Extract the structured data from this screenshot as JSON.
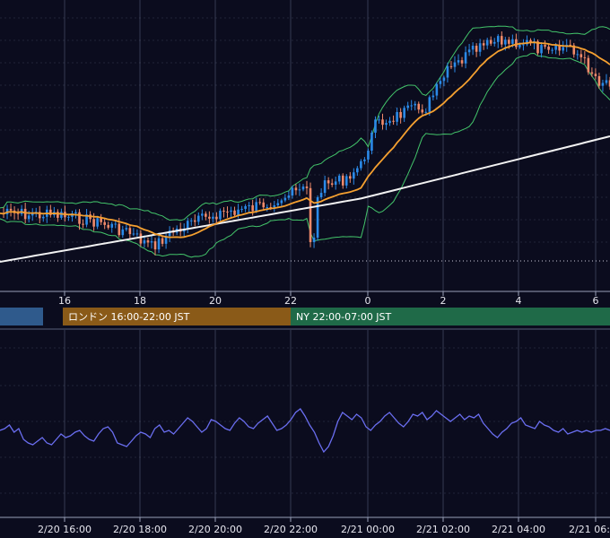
{
  "colors": {
    "background": "#0b0c1e",
    "grid": "#5a5f7a",
    "axis_line": "#9aa0b8",
    "candle_up": "#2b8ae8",
    "candle_down": "#f08a6a",
    "ma_short": "#f5a030",
    "ma_long": "#f2f2f2",
    "bollinger": "#43c46a",
    "oscillator": "#6a6ef0",
    "session_tokyo": "#2f5a8c",
    "session_london": "#8a5a18",
    "session_ny": "#1f6a48"
  },
  "sessions": [
    {
      "label": "",
      "color": "#2f5a8c"
    },
    {
      "label": "ロンドン 16:00-22:00 JST",
      "color": "#8a5a18"
    },
    {
      "label": "NY 22:00-07:00 JST",
      "color": "#1f6a48"
    }
  ],
  "chart_data": [
    {
      "type": "candlestick",
      "indicators": [
        "moving average (orange)",
        "moving average (white)",
        "Bollinger bands (green)"
      ],
      "x_ticks": [
        "16",
        "18",
        "20",
        "22",
        "0",
        "2",
        "4",
        "6"
      ],
      "grid": true
    },
    {
      "type": "line",
      "series": [
        {
          "values": [
            45,
            46,
            48,
            44,
            46,
            40,
            38,
            37,
            39,
            41,
            38,
            37,
            40,
            43,
            41,
            42,
            44,
            45,
            42,
            40,
            39,
            43,
            46,
            47,
            44,
            38,
            37,
            36,
            39,
            42,
            44,
            43,
            41,
            46,
            48,
            44,
            45,
            43,
            46,
            49,
            52,
            50,
            47,
            44,
            46,
            51,
            50,
            48,
            46,
            45,
            49,
            52,
            50,
            47,
            46,
            49,
            51,
            53,
            49,
            45,
            46,
            48,
            51,
            55,
            57,
            53,
            48,
            44,
            38,
            33,
            36,
            42,
            50,
            55,
            53,
            51,
            54,
            52,
            47,
            45,
            48,
            50,
            53,
            55,
            52,
            49,
            47,
            50,
            54,
            53,
            55,
            51,
            53,
            56,
            54,
            52,
            50,
            52,
            54,
            51,
            53,
            52,
            54,
            49,
            46,
            43,
            41,
            44,
            46,
            49,
            50,
            52,
            48,
            47,
            46,
            50,
            48,
            47,
            45,
            44,
            46,
            43,
            44,
            45,
            44,
            45,
            44,
            45,
            45,
            46,
            45
          ]
        }
      ],
      "x_ticks": [
        "2/20 16:00",
        "2/20 18:00",
        "2/20 20:00",
        "2/20 22:00",
        "2/21 00:00",
        "2/21 02:00",
        "2/21 04:00",
        "2/21 06:00"
      ],
      "grid": true
    }
  ]
}
